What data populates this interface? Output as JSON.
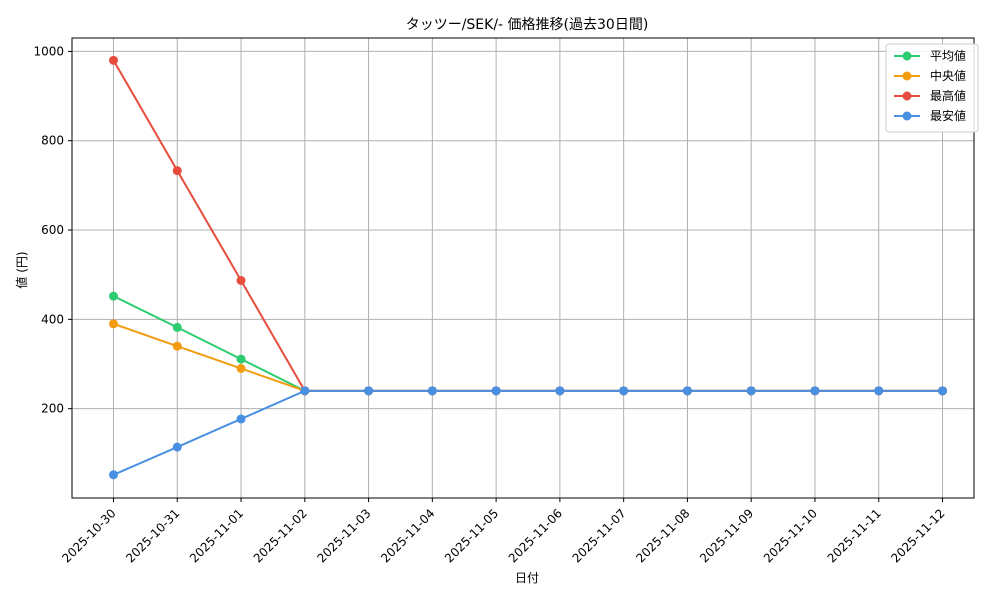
{
  "chart_data": {
    "type": "line",
    "title": "タッツー/SEK/- 価格推移(過去30日間)",
    "xlabel": "日付",
    "ylabel": "値 (円)",
    "x": [
      "2025-10-30",
      "2025-10-31",
      "2025-11-01",
      "2025-11-02",
      "2025-11-03",
      "2025-11-04",
      "2025-11-05",
      "2025-11-06",
      "2025-11-07",
      "2025-11-08",
      "2025-11-09",
      "2025-11-10",
      "2025-11-11",
      "2025-11-12"
    ],
    "ylim": [
      0,
      1030
    ],
    "yticks": [
      200,
      400,
      600,
      800,
      1000
    ],
    "grid": true,
    "legend_position": "top-right",
    "series": [
      {
        "name": "平均値",
        "color": "#2ecc71",
        "values": [
          452,
          382,
          311,
          240,
          240,
          240,
          240,
          240,
          240,
          240,
          240,
          240,
          240,
          240
        ]
      },
      {
        "name": "中央値",
        "color": "#f39c12",
        "values": [
          390,
          340,
          290,
          240,
          240,
          240,
          240,
          240,
          240,
          240,
          240,
          240,
          240,
          240
        ]
      },
      {
        "name": "最高値",
        "color": "#e74c3c",
        "values": [
          980,
          733,
          487,
          240,
          240,
          240,
          240,
          240,
          240,
          240,
          240,
          240,
          240,
          240
        ]
      },
      {
        "name": "最安値",
        "color": "#4a90e2",
        "values": [
          52,
          114,
          177,
          240,
          240,
          240,
          240,
          240,
          240,
          240,
          240,
          240,
          240,
          240
        ]
      }
    ]
  }
}
